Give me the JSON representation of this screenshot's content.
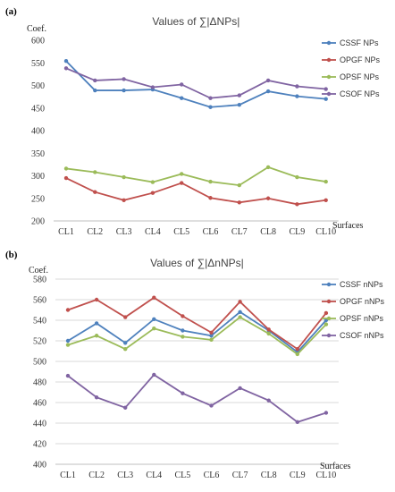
{
  "chart_data": [
    {
      "type": "line",
      "panel_label": "(a)",
      "title": "Values of ∑|ΔNPs|",
      "ylabel": "Coef.",
      "xlabel": "Surfaces",
      "categories": [
        "CL1",
        "CL2",
        "CL3",
        "CL4",
        "CL5",
        "CL6",
        "CL7",
        "CL8",
        "CL9",
        "CL10"
      ],
      "ylim": [
        200,
        600
      ],
      "yticks": [
        200,
        250,
        300,
        350,
        400,
        450,
        500,
        550,
        600
      ],
      "grid": false,
      "legend": "right",
      "series": [
        {
          "name": "CSSF NPs",
          "color": "#4e81bd",
          "values": [
            554,
            489,
            489,
            491,
            472,
            452,
            457,
            487,
            476,
            470
          ]
        },
        {
          "name": "OPGF NPs",
          "color": "#c0504d",
          "values": [
            295,
            264,
            246,
            262,
            284,
            251,
            241,
            250,
            237,
            246
          ]
        },
        {
          "name": "OPSF NPs",
          "color": "#9bbb59",
          "values": [
            316,
            308,
            297,
            286,
            304,
            287,
            279,
            319,
            297,
            287
          ]
        },
        {
          "name": "CSOF NPs",
          "color": "#8064a2",
          "values": [
            538,
            511,
            514,
            496,
            502,
            472,
            478,
            511,
            498,
            492
          ]
        }
      ]
    },
    {
      "type": "line",
      "panel_label": "(b)",
      "title": "Values of ∑|ΔnNPs|",
      "ylabel": "Coef.",
      "xlabel": "Surfaces",
      "categories": [
        "CL1",
        "CL2",
        "CL3",
        "CL4",
        "CL5",
        "CL6",
        "CL7",
        "CL8",
        "CL9",
        "CL10"
      ],
      "ylim": [
        400,
        580
      ],
      "yticks": [
        400,
        420,
        440,
        460,
        480,
        500,
        520,
        540,
        560,
        580
      ],
      "grid": true,
      "legend": "right",
      "series": [
        {
          "name": "CSSF nNPs",
          "color": "#4e81bd",
          "values": [
            520,
            537,
            518,
            541,
            530,
            525,
            548,
            530,
            509,
            540
          ]
        },
        {
          "name": "OPGF nNPs",
          "color": "#c0504d",
          "values": [
            550,
            560,
            543,
            562,
            544,
            528,
            558,
            531,
            512,
            547
          ]
        },
        {
          "name": "OPSF nNPs",
          "color": "#9bbb59",
          "values": [
            516,
            525,
            512,
            532,
            524,
            521,
            543,
            527,
            507,
            536
          ]
        },
        {
          "name": "CSOF nNPs",
          "color": "#8064a2",
          "values": [
            486,
            465,
            455,
            487,
            469,
            457,
            474,
            462,
            441,
            450
          ]
        }
      ]
    }
  ]
}
